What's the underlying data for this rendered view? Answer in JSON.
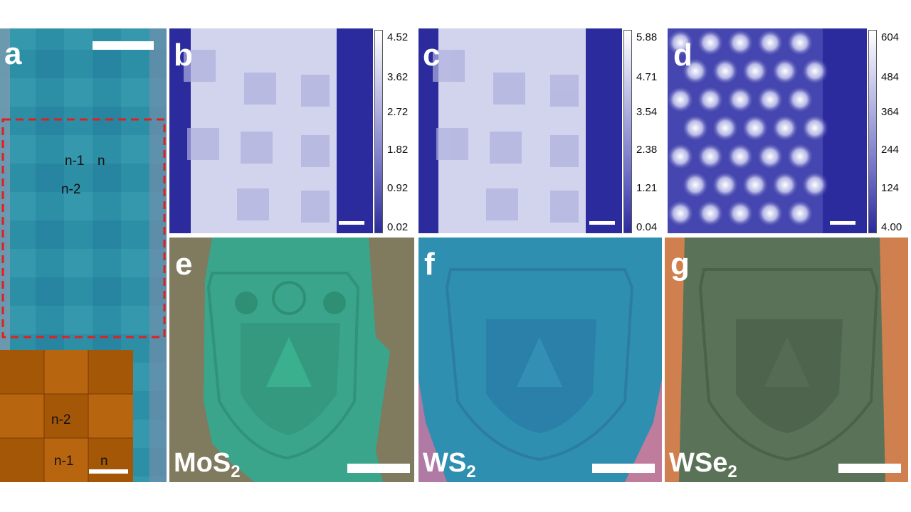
{
  "panels": {
    "a": {
      "label": "a",
      "region_labels": [
        "n-1",
        "n",
        "n-2"
      ],
      "inset_labels": [
        "n-2",
        "n-1",
        "n"
      ]
    },
    "b": {
      "label": "b",
      "colorbar_ticks": [
        "4.52",
        "3.62",
        "2.72",
        "1.82",
        "0.92",
        "0.02"
      ]
    },
    "c": {
      "label": "c",
      "colorbar_ticks": [
        "5.88",
        "4.71",
        "3.54",
        "2.38",
        "1.21",
        "0.04"
      ]
    },
    "d": {
      "label": "d",
      "colorbar_ticks": [
        "604",
        "484",
        "364",
        "244",
        "124",
        "4.00"
      ]
    },
    "e": {
      "label": "e",
      "material_main": "MoS",
      "material_sub": "2"
    },
    "f": {
      "label": "f",
      "material_main": "WS",
      "material_sub": "2"
    },
    "g": {
      "label": "g",
      "material_main": "WSe",
      "material_sub": "2"
    }
  },
  "colors": {
    "map_background": "#2b2b9e",
    "map_flake": "#d2d4ee",
    "optical_a": "#2f94a8",
    "mos2_flake": "#3aa58a",
    "wse2_substrate": "#d0804e",
    "dashed_box": "#e02020"
  }
}
